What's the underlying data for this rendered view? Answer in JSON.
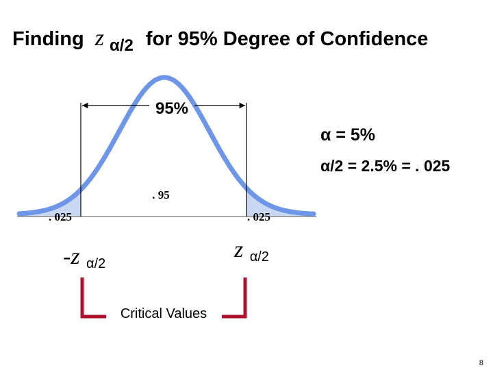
{
  "header": {
    "prefix": "Finding",
    "symbol": "z",
    "subscript": "α/2",
    "suffix": "for 95% Degree of Confidence"
  },
  "labels": {
    "center_percent": "95%",
    "alpha": "α = 5%",
    "half_alpha": "α/2 = 2.5% = . 025",
    "center_area": ". 95",
    "left_tail": ". 025",
    "right_tail": ". 025"
  },
  "critical": {
    "left_symbol": "-z",
    "left_subscript": "α/2",
    "right_symbol": "z",
    "right_subscript": "α/2",
    "caption": "Critical Values"
  },
  "footer": {
    "page": "8"
  }
}
